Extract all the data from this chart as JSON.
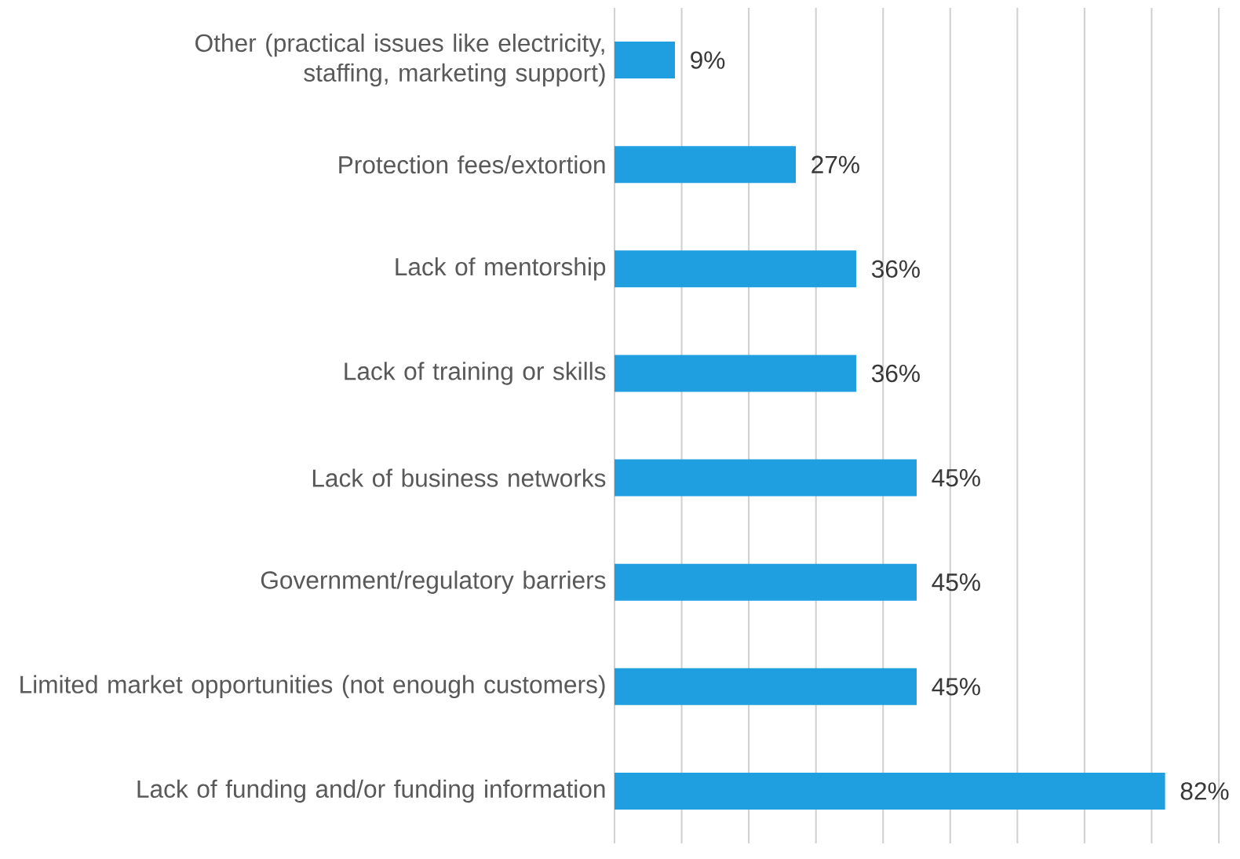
{
  "chart_data": {
    "type": "bar",
    "orientation": "horizontal",
    "categories": [
      "Other (practical issues like electricity, staffing, marketing support)",
      "Protection fees/extortion",
      "Lack of mentorship",
      "Lack of training or skills",
      "Lack of business networks",
      "Government/regulatory barriers",
      "Limited market opportunities (not enough customers)",
      "Lack of funding and/or funding information"
    ],
    "values": [
      9,
      27,
      36,
      36,
      45,
      45,
      45,
      82
    ],
    "value_labels": [
      "9%",
      "27%",
      "36%",
      "36%",
      "45%",
      "45%",
      "45%",
      "82%"
    ],
    "color": "#1f9fe0",
    "xlim": [
      0,
      90
    ],
    "xticks": [
      {
        "value": 0,
        "label": null
      },
      {
        "value": 10,
        "label": null
      },
      {
        "value": 20,
        "label": null
      },
      {
        "value": 30,
        "label": null
      },
      {
        "value": 40,
        "label": null
      },
      {
        "value": 50,
        "label": null
      },
      {
        "value": 60,
        "label": null
      },
      {
        "value": 70,
        "label": null
      },
      {
        "value": 80,
        "label": null
      },
      {
        "value": 90,
        "label": null
      }
    ],
    "tick_labels": "y",
    "grid": "x"
  }
}
